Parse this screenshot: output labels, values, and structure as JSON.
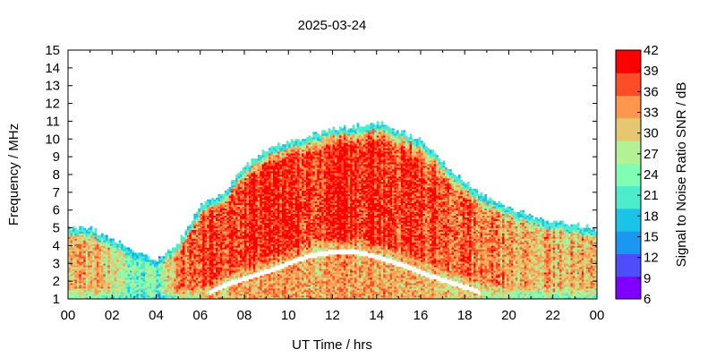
{
  "chart_data": {
    "type": "heatmap",
    "title": "2025-03-24",
    "xlabel": "UT Time / hrs",
    "ylabel": "Frequency / MHz",
    "xlim": [
      0,
      24
    ],
    "ylim": [
      1,
      15
    ],
    "x_ticks": [
      "00",
      "02",
      "04",
      "06",
      "08",
      "10",
      "12",
      "14",
      "16",
      "18",
      "20",
      "22",
      "00"
    ],
    "y_ticks": [
      "1",
      "2",
      "3",
      "4",
      "5",
      "6",
      "7",
      "8",
      "9",
      "10",
      "11",
      "12",
      "13",
      "14",
      "15"
    ],
    "grid": false,
    "colorbar": {
      "label": "Signal to Noise Ratio SNR / dB",
      "range": [
        6,
        42
      ],
      "ticks": [
        "6",
        "9",
        "12",
        "15",
        "18",
        "21",
        "24",
        "27",
        "30",
        "33",
        "36",
        "39",
        "42"
      ],
      "colors": [
        "#8000ff",
        "#4d4dfc",
        "#1a96f3",
        "#19c4e8",
        "#4ceccc",
        "#80feb3",
        "#b3f294",
        "#e6c76f",
        "#ff964e",
        "#ff4d27",
        "#ff0000"
      ]
    },
    "coverage": {
      "description_points_hours": [
        0,
        1,
        2,
        3,
        4,
        5,
        6,
        7,
        8,
        9,
        10,
        11,
        12,
        13,
        14,
        15,
        16,
        17,
        18,
        19,
        20,
        21,
        22,
        23,
        24
      ],
      "upper_edge_mhz": [
        5.0,
        4.9,
        4.3,
        3.6,
        3.1,
        4.2,
        6.2,
        6.9,
        8.4,
        9.4,
        9.8,
        10.2,
        10.5,
        10.7,
        10.9,
        10.4,
        9.9,
        8.6,
        7.5,
        6.6,
        6.0,
        5.6,
        5.3,
        5.1,
        4.9
      ],
      "gap_lower_mhz": [
        1.0,
        1.0,
        1.0,
        1.0,
        1.0,
        1.0,
        1.0,
        1.6,
        2.0,
        2.4,
        2.9,
        3.3,
        3.5,
        3.5,
        3.2,
        2.8,
        2.3,
        1.9,
        1.5,
        1.0,
        1.0,
        1.0,
        1.0,
        1.0,
        1.0
      ],
      "peak_snr_db": [
        33,
        33,
        30,
        24,
        24,
        36,
        39,
        39,
        40,
        40,
        40,
        40,
        40,
        40,
        40,
        39,
        39,
        38,
        37,
        36,
        34,
        33,
        33,
        33,
        33
      ]
    }
  }
}
